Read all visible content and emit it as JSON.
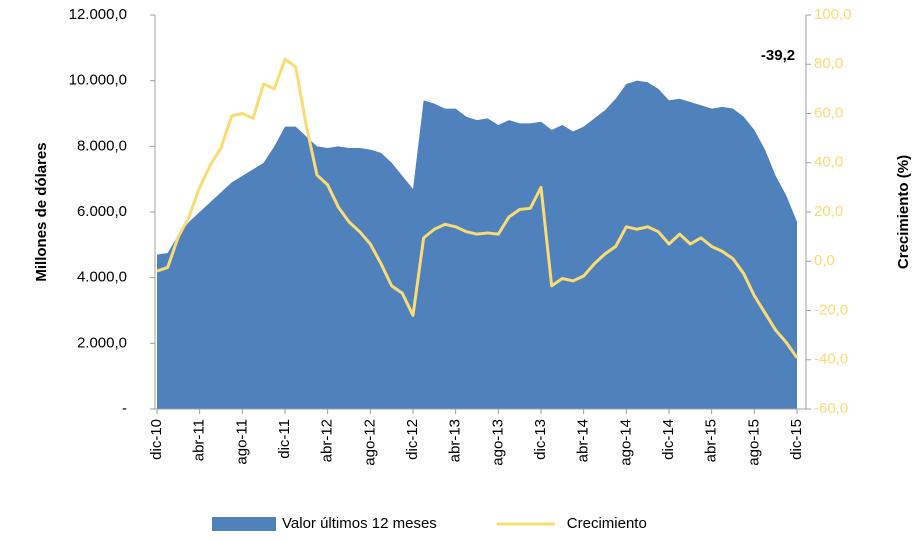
{
  "chart_data": {
    "type": "area-line",
    "categories": [
      "dic-10",
      null,
      null,
      null,
      "abr-11",
      null,
      null,
      null,
      "ago-11",
      null,
      null,
      null,
      "dic-11",
      null,
      null,
      null,
      "abr-12",
      null,
      null,
      null,
      "ago-12",
      null,
      null,
      null,
      "dic-12",
      null,
      null,
      null,
      "abr-13",
      null,
      null,
      null,
      "ago-13",
      null,
      null,
      null,
      "dic-13",
      null,
      null,
      null,
      "abr-14",
      null,
      null,
      null,
      "ago-14",
      null,
      null,
      null,
      "dic-14",
      null,
      null,
      null,
      "abr-15",
      null,
      null,
      null,
      "ago-15",
      null,
      null,
      null,
      "dic-15"
    ],
    "series": [
      {
        "name": "Valor últimos 12 meses",
        "color": "#4f81bd",
        "axis": "y",
        "values": [
          4700,
          4750,
          5300,
          5700,
          6000,
          6300,
          6600,
          6900,
          7100,
          7300,
          7500,
          8000,
          8600,
          8600,
          8300,
          8000,
          7950,
          8000,
          7950,
          7950,
          7900,
          7800,
          7500,
          7100,
          6700,
          9400,
          9300,
          9150,
          9150,
          8900,
          8800,
          8850,
          8650,
          8800,
          8700,
          8700,
          8750,
          8500,
          8650,
          8450,
          8600,
          8850,
          9100,
          9450,
          9900,
          10000,
          9950,
          9750,
          9400,
          9450,
          9350,
          9250,
          9150,
          9200,
          9150,
          8900,
          8500,
          7900,
          7100,
          6500,
          5700
        ]
      },
      {
        "name": "Crecimiento",
        "color": "#fadc73",
        "axis": "y2",
        "values": [
          -4,
          -2.5,
          10,
          18,
          30,
          39,
          46,
          59,
          60,
          58,
          72,
          70,
          82,
          79,
          55,
          35,
          31,
          22,
          16,
          12,
          7,
          -1,
          -10,
          -13,
          -22,
          9.5,
          13,
          15,
          14,
          12,
          11,
          11.5,
          11,
          18,
          21,
          21.5,
          30,
          -10,
          -7,
          -8,
          -6,
          -1,
          3,
          6,
          14,
          13,
          14,
          12,
          7,
          11,
          7,
          9.5,
          6,
          4,
          1,
          -5,
          -14,
          -21,
          -28,
          -33,
          -39.2
        ]
      }
    ],
    "ylabel": "Millones de dólares",
    "y2label": "Crecimiento  (%)",
    "annotation": "-39,2",
    "ylim": [
      0,
      12000
    ],
    "yticks": [
      {
        "value": 0,
        "label": "-"
      },
      {
        "value": 2000,
        "label": "2.000,0"
      },
      {
        "value": 4000,
        "label": "4.000,0"
      },
      {
        "value": 6000,
        "label": "6.000,0"
      },
      {
        "value": 8000,
        "label": "8.000,0"
      },
      {
        "value": 10000,
        "label": "10.000,0"
      },
      {
        "value": 12000,
        "label": "12.000,0"
      }
    ],
    "y2lim": [
      -60,
      100
    ],
    "y2ticks": [
      {
        "value": -60,
        "label": "-60,0"
      },
      {
        "value": -40,
        "label": "-40,0"
      },
      {
        "value": -20,
        "label": "-20,0"
      },
      {
        "value": 0,
        "label": "0,0"
      },
      {
        "value": 20,
        "label": "20,0"
      },
      {
        "value": 40,
        "label": "40,0"
      },
      {
        "value": 60,
        "label": "60,0"
      },
      {
        "value": 80,
        "label": "80,0"
      },
      {
        "value": 100,
        "label": "100,0"
      }
    ],
    "legend": "bottom"
  }
}
